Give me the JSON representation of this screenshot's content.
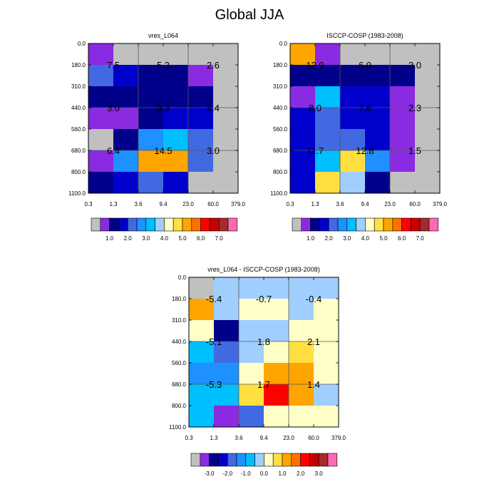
{
  "title": "Global JJA",
  "axes": {
    "x_ticks": [
      "0.3",
      "1.3",
      "3.6",
      "9.4",
      "23.0",
      "60.0",
      "379.0"
    ],
    "y_ticks": [
      "0.0",
      "180.0",
      "310.0",
      "440.0",
      "560.0",
      "680.0",
      "800.0",
      "1100.0"
    ]
  },
  "colors": {
    "main_scale": [
      "#c0c0c0",
      "#8a2be2",
      "#00008b",
      "#0000cd",
      "#4169e1",
      "#1e90ff",
      "#00bfff",
      "#a0cfff",
      "#ffffc8",
      "#ffe040",
      "#ffa500",
      "#ff7000",
      "#ff0000",
      "#c80000",
      "#a52a2a",
      "#ff69b4"
    ],
    "diff_scale": [
      "#c0c0c0",
      "#8a2be2",
      "#00008b",
      "#0000cd",
      "#4169e1",
      "#1e90ff",
      "#00bfff",
      "#a0cfff",
      "#ffffc8",
      "#ffe040",
      "#ffa500",
      "#ff7000",
      "#ff0000",
      "#c80000",
      "#a52a2a",
      "#ff69b4"
    ]
  },
  "chart_data": [
    {
      "type": "heatmap",
      "title": "vres_L064",
      "xlabel": "",
      "ylabel": "",
      "x_edges": [
        "0.3",
        "1.3",
        "3.6",
        "9.4",
        "23.0",
        "60.0",
        "379.0"
      ],
      "y_edges": [
        "0.0",
        "180.0",
        "310.0",
        "440.0",
        "560.0",
        "680.0",
        "800.0",
        "1100.0"
      ],
      "cell_color_index": [
        [
          1,
          0,
          0,
          0,
          0,
          0
        ],
        [
          4,
          3,
          2,
          2,
          1,
          0
        ],
        [
          2,
          2,
          2,
          2,
          2,
          0
        ],
        [
          1,
          1,
          2,
          3,
          3,
          0
        ],
        [
          0,
          2,
          5,
          6,
          4,
          0
        ],
        [
          1,
          5,
          10,
          10,
          4,
          0
        ],
        [
          2,
          3,
          4,
          3,
          0,
          0
        ]
      ],
      "annotations": [
        {
          "col": 1,
          "row": 1,
          "text": "7.5"
        },
        {
          "col": 3,
          "row": 1,
          "text": "5.3"
        },
        {
          "col": 5,
          "row": 1,
          "text": "2.6"
        },
        {
          "col": 1,
          "row": 3,
          "text": "3.0"
        },
        {
          "col": 3,
          "row": 3,
          "text": "9.3"
        },
        {
          "col": 5,
          "row": 3,
          "text": "4.4"
        },
        {
          "col": 1,
          "row": 5,
          "text": "6.4"
        },
        {
          "col": 3,
          "row": 5,
          "text": "14.5"
        },
        {
          "col": 5,
          "row": 5,
          "text": "3.0"
        }
      ],
      "colorbar": {
        "labels": [
          "1.0",
          "2.0",
          "3.0",
          "4.0",
          "5.0",
          "6.0",
          "7.0"
        ],
        "boxes": 16
      }
    },
    {
      "type": "heatmap",
      "title": "ISCCP-COSP (1983-2008)",
      "xlabel": "",
      "ylabel": "",
      "x_edges": [
        "0.3",
        "1.3",
        "3.6",
        "9.4",
        "23.0",
        "60.0",
        "379.0"
      ],
      "y_edges": [
        "0.0",
        "180.0",
        "310.0",
        "440.0",
        "560.0",
        "680.0",
        "800.0",
        "1100.0"
      ],
      "cell_color_index": [
        [
          10,
          1,
          0,
          0,
          0,
          0
        ],
        [
          2,
          2,
          2,
          2,
          2,
          0
        ],
        [
          1,
          6,
          3,
          3,
          1,
          0
        ],
        [
          3,
          4,
          3,
          3,
          1,
          0
        ],
        [
          3,
          4,
          4,
          3,
          1,
          0
        ],
        [
          3,
          6,
          9,
          5,
          1,
          0
        ],
        [
          3,
          9,
          7,
          2,
          0,
          0
        ]
      ],
      "annotations": [
        {
          "col": 1,
          "row": 1,
          "text": "12.9"
        },
        {
          "col": 3,
          "row": 1,
          "text": "6.0"
        },
        {
          "col": 5,
          "row": 1,
          "text": "3.0"
        },
        {
          "col": 1,
          "row": 3,
          "text": "8.0"
        },
        {
          "col": 3,
          "row": 3,
          "text": "7.6"
        },
        {
          "col": 5,
          "row": 3,
          "text": "2.3"
        },
        {
          "col": 1,
          "row": 5,
          "text": "11.7"
        },
        {
          "col": 3,
          "row": 5,
          "text": "12.8"
        },
        {
          "col": 5,
          "row": 5,
          "text": "1.5"
        }
      ],
      "colorbar": {
        "labels": [
          "1.0",
          "2.0",
          "3.0",
          "4.0",
          "5.0",
          "6.0",
          "7.0"
        ],
        "boxes": 16
      }
    },
    {
      "type": "heatmap",
      "title": "vres_L064 - ISCCP-COSP (1983-2008)",
      "xlabel": "",
      "ylabel": "",
      "x_edges": [
        "0.3",
        "1.3",
        "3.6",
        "9.4",
        "23.0",
        "60.0",
        "379.0"
      ],
      "y_edges": [
        "0.0",
        "180.0",
        "310.0",
        "440.0",
        "560.0",
        "680.0",
        "800.0",
        "1100.0"
      ],
      "cell_color_index": [
        [
          0,
          7,
          7,
          7,
          7,
          7
        ],
        [
          10,
          7,
          8,
          8,
          7,
          8
        ],
        [
          8,
          2,
          7,
          7,
          8,
          8
        ],
        [
          6,
          4,
          7,
          8,
          9,
          8
        ],
        [
          5,
          5,
          8,
          10,
          10,
          8
        ],
        [
          6,
          6,
          9,
          12,
          10,
          7
        ],
        [
          6,
          1,
          4,
          8,
          8,
          8
        ]
      ],
      "annotations": [
        {
          "col": 1,
          "row": 1,
          "text": "-5.4"
        },
        {
          "col": 3,
          "row": 1,
          "text": "-0.7"
        },
        {
          "col": 5,
          "row": 1,
          "text": "-0.4"
        },
        {
          "col": 1,
          "row": 3,
          "text": "-5.1"
        },
        {
          "col": 3,
          "row": 3,
          "text": "1.8"
        },
        {
          "col": 5,
          "row": 3,
          "text": "2.1"
        },
        {
          "col": 1,
          "row": 5,
          "text": "-5.3"
        },
        {
          "col": 3,
          "row": 5,
          "text": "1.7"
        },
        {
          "col": 5,
          "row": 5,
          "text": "1.4"
        }
      ],
      "colorbar": {
        "labels": [
          "-3.0",
          "-2.0",
          "-1.0",
          "0.0",
          "1.0",
          "2.0",
          "3.0"
        ],
        "boxes": 16
      }
    }
  ]
}
